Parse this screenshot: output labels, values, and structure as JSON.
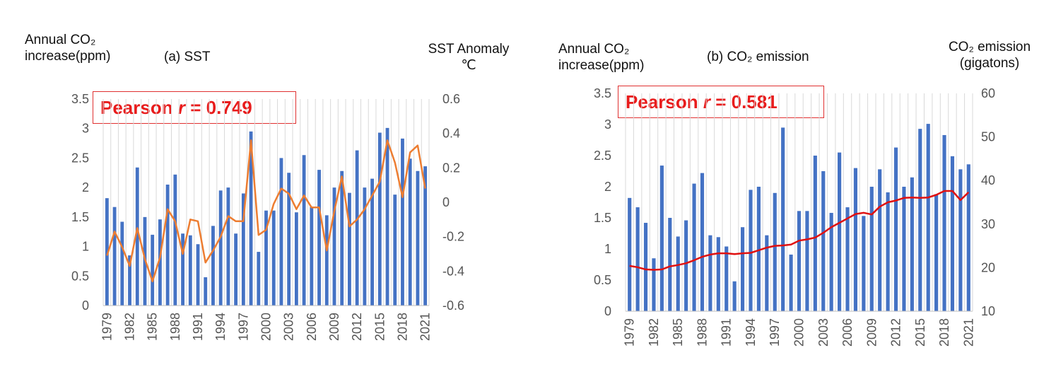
{
  "chart_data": [
    {
      "type": "bar",
      "title": "(a) SST",
      "ylabel": "Annual CO₂ increase(ppm)",
      "y2label": "SST Anomaly ℃",
      "annotation_prefix": "Pearson",
      "annotation_var": "r",
      "annotation_value": "= 0.749",
      "ylim": [
        0,
        3.5
      ],
      "y2lim": [
        -0.6,
        0.6
      ],
      "yticks": [
        "0",
        "0.5",
        "1",
        "1.5",
        "2",
        "2.5",
        "3",
        "3.5"
      ],
      "y2ticks": [
        "-0.6",
        "-0.4",
        "-0.2",
        "0",
        "0.2",
        "0.4",
        "0.6"
      ],
      "xtick_labels": [
        "1979",
        "1982",
        "1985",
        "1988",
        "1991",
        "1994",
        "1997",
        "2000",
        "2003",
        "2006",
        "2009",
        "2012",
        "2015",
        "2018",
        "2021"
      ],
      "grid": true,
      "bar_color": "#4472c4",
      "line_color": "#ed7d31",
      "series": [
        {
          "type": "bar",
          "x": [
            1979,
            1980,
            1981,
            1982,
            1983,
            1984,
            1985,
            1986,
            1987,
            1988,
            1989,
            1990,
            1991,
            1992,
            1993,
            1994,
            1995,
            1996,
            1997,
            1998,
            1999,
            2000,
            2001,
            2002,
            2003,
            2004,
            2005,
            2006,
            2007,
            2008,
            2009,
            2010,
            2011,
            2012,
            2013,
            2014,
            2015,
            2016,
            2017,
            2018,
            2019,
            2020,
            2021
          ],
          "values": [
            1.82,
            1.67,
            1.42,
            0.85,
            2.34,
            1.5,
            1.2,
            1.46,
            2.05,
            2.22,
            1.22,
            1.19,
            1.04,
            0.48,
            1.35,
            1.95,
            2.0,
            1.22,
            1.9,
            2.95,
            0.91,
            1.61,
            1.61,
            2.5,
            2.25,
            1.58,
            2.55,
            1.67,
            2.3,
            1.53,
            2.0,
            2.28,
            1.91,
            2.63,
            2.0,
            2.15,
            2.93,
            3.01,
            1.88,
            2.83,
            2.49,
            2.28,
            2.36
          ]
        },
        {
          "type": "line",
          "axis": "secondary",
          "x": [
            1979,
            1980,
            1981,
            1982,
            1983,
            1984,
            1985,
            1986,
            1987,
            1988,
            1989,
            1990,
            1991,
            1992,
            1993,
            1994,
            1995,
            1996,
            1997,
            1998,
            1999,
            2000,
            2001,
            2002,
            2003,
            2004,
            2005,
            2006,
            2007,
            2008,
            2009,
            2010,
            2011,
            2012,
            2013,
            2014,
            2015,
            2016,
            2017,
            2018,
            2019,
            2020,
            2021
          ],
          "values": [
            -0.31,
            -0.17,
            -0.26,
            -0.37,
            -0.15,
            -0.33,
            -0.46,
            -0.32,
            -0.04,
            -0.11,
            -0.3,
            -0.1,
            -0.11,
            -0.35,
            -0.28,
            -0.2,
            -0.08,
            -0.11,
            -0.11,
            0.36,
            -0.19,
            -0.16,
            -0.01,
            0.08,
            0.05,
            -0.04,
            0.04,
            -0.03,
            -0.03,
            -0.28,
            -0.05,
            0.15,
            -0.14,
            -0.1,
            -0.04,
            0.04,
            0.12,
            0.36,
            0.23,
            0.03,
            0.29,
            0.33,
            0.08
          ]
        }
      ]
    },
    {
      "type": "bar",
      "title": "(b) CO₂ emission",
      "ylabel": "Annual CO₂ increase(ppm)",
      "y2label": "CO₂ emission (gigatons)",
      "annotation_prefix": "Pearson",
      "annotation_var": "r",
      "annotation_value": "= 0.581",
      "ylim": [
        0,
        3.5
      ],
      "y2lim": [
        10,
        60
      ],
      "yticks": [
        "0",
        "0.5",
        "1",
        "1.5",
        "2",
        "2.5",
        "3",
        "3.5"
      ],
      "y2ticks": [
        "10",
        "20",
        "30",
        "40",
        "50",
        "60"
      ],
      "xtick_labels": [
        "1979",
        "1982",
        "1985",
        "1988",
        "1991",
        "1994",
        "1997",
        "2000",
        "2003",
        "2006",
        "2009",
        "2012",
        "2015",
        "2018",
        "2021"
      ],
      "grid": true,
      "bar_color": "#4472c4",
      "line_color": "#e01010",
      "series": [
        {
          "type": "bar",
          "x": [
            1979,
            1980,
            1981,
            1982,
            1983,
            1984,
            1985,
            1986,
            1987,
            1988,
            1989,
            1990,
            1991,
            1992,
            1993,
            1994,
            1995,
            1996,
            1997,
            1998,
            1999,
            2000,
            2001,
            2002,
            2003,
            2004,
            2005,
            2006,
            2007,
            2008,
            2009,
            2010,
            2011,
            2012,
            2013,
            2014,
            2015,
            2016,
            2017,
            2018,
            2019,
            2020,
            2021
          ],
          "values": [
            1.82,
            1.67,
            1.42,
            0.85,
            2.34,
            1.5,
            1.2,
            1.46,
            2.05,
            2.22,
            1.22,
            1.19,
            1.04,
            0.48,
            1.35,
            1.95,
            2.0,
            1.22,
            1.9,
            2.95,
            0.91,
            1.61,
            1.61,
            2.5,
            2.25,
            1.58,
            2.55,
            1.67,
            2.3,
            1.53,
            2.0,
            2.28,
            1.91,
            2.63,
            2.0,
            2.15,
            2.93,
            3.01,
            1.88,
            2.83,
            2.49,
            2.28,
            2.36
          ]
        },
        {
          "type": "line",
          "axis": "secondary",
          "x": [
            1979,
            1980,
            1981,
            1982,
            1983,
            1984,
            1985,
            1986,
            1987,
            1988,
            1989,
            1990,
            1991,
            1992,
            1993,
            1994,
            1995,
            1996,
            1997,
            1998,
            1999,
            2000,
            2001,
            2002,
            2003,
            2004,
            2005,
            2006,
            2007,
            2008,
            2009,
            2010,
            2011,
            2012,
            2013,
            2014,
            2015,
            2016,
            2017,
            2018,
            2019,
            2020,
            2021
          ],
          "values": [
            20.4,
            20.1,
            19.6,
            19.5,
            19.6,
            20.3,
            20.6,
            21.0,
            21.7,
            22.5,
            23.0,
            23.3,
            23.3,
            23.1,
            23.3,
            23.4,
            24.0,
            24.6,
            25.0,
            25.1,
            25.3,
            26.2,
            26.5,
            26.9,
            28.0,
            29.3,
            30.3,
            31.3,
            32.3,
            32.6,
            32.2,
            34.0,
            35.0,
            35.4,
            36.0,
            36.1,
            36.0,
            36.1,
            36.7,
            37.6,
            37.6,
            35.5,
            37.3
          ]
        }
      ]
    }
  ]
}
